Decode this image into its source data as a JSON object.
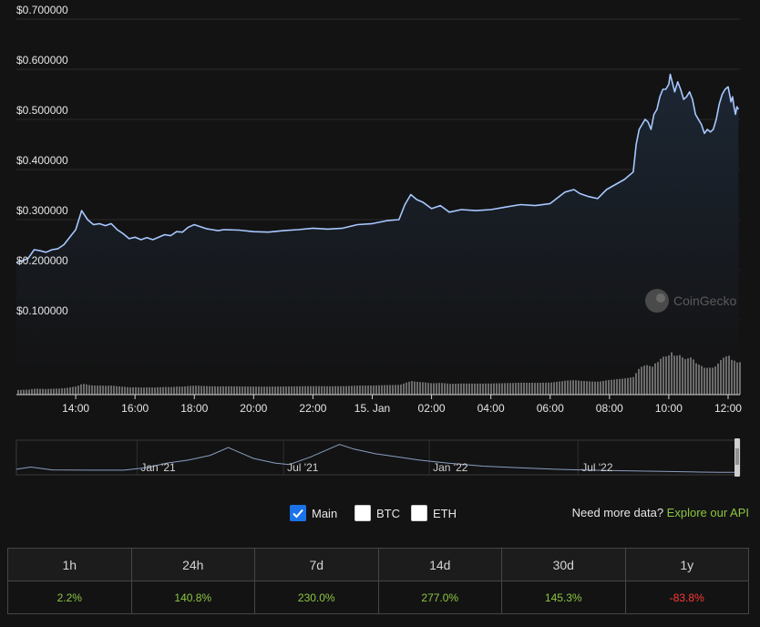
{
  "chart_data": {
    "type": "area",
    "ylim": [
      0,
      0.7
    ],
    "y_tick_labels": [
      "$0.100000",
      "$0.200000",
      "$0.300000",
      "$0.400000",
      "$0.500000",
      "$0.600000",
      "$0.700000"
    ],
    "y_tick_values": [
      0.1,
      0.2,
      0.3,
      0.4,
      0.5,
      0.6,
      0.7
    ],
    "x_tick_labels": [
      "14:00",
      "16:00",
      "18:00",
      "20:00",
      "22:00",
      "15. Jan",
      "02:00",
      "04:00",
      "06:00",
      "08:00",
      "10:00",
      "12:00"
    ],
    "x_tick_hours": [
      2,
      4,
      6,
      8,
      10,
      12,
      14,
      16,
      18,
      20,
      22,
      24
    ],
    "x_hour_range": [
      0.0,
      24.4
    ],
    "price": [
      [
        0.0,
        0.215
      ],
      [
        0.2,
        0.218
      ],
      [
        0.4,
        0.223
      ],
      [
        0.6,
        0.24
      ],
      [
        0.8,
        0.238
      ],
      [
        1.0,
        0.235
      ],
      [
        1.2,
        0.24
      ],
      [
        1.4,
        0.242
      ],
      [
        1.6,
        0.25
      ],
      [
        1.8,
        0.265
      ],
      [
        2.0,
        0.28
      ],
      [
        2.2,
        0.318
      ],
      [
        2.4,
        0.3
      ],
      [
        2.6,
        0.29
      ],
      [
        2.8,
        0.292
      ],
      [
        3.0,
        0.288
      ],
      [
        3.2,
        0.292
      ],
      [
        3.4,
        0.28
      ],
      [
        3.6,
        0.272
      ],
      [
        3.8,
        0.262
      ],
      [
        4.0,
        0.265
      ],
      [
        4.2,
        0.26
      ],
      [
        4.4,
        0.264
      ],
      [
        4.6,
        0.26
      ],
      [
        4.8,
        0.265
      ],
      [
        5.0,
        0.27
      ],
      [
        5.2,
        0.268
      ],
      [
        5.4,
        0.276
      ],
      [
        5.6,
        0.275
      ],
      [
        5.8,
        0.285
      ],
      [
        6.0,
        0.29
      ],
      [
        6.2,
        0.286
      ],
      [
        6.4,
        0.282
      ],
      [
        6.6,
        0.28
      ],
      [
        6.8,
        0.278
      ],
      [
        7.0,
        0.28
      ],
      [
        7.5,
        0.279
      ],
      [
        8.0,
        0.276
      ],
      [
        8.5,
        0.275
      ],
      [
        9.0,
        0.278
      ],
      [
        9.5,
        0.28
      ],
      [
        10.0,
        0.283
      ],
      [
        10.5,
        0.281
      ],
      [
        11.0,
        0.283
      ],
      [
        11.5,
        0.29
      ],
      [
        12.0,
        0.292
      ],
      [
        12.5,
        0.298
      ],
      [
        12.9,
        0.3
      ],
      [
        13.1,
        0.33
      ],
      [
        13.3,
        0.35
      ],
      [
        13.5,
        0.34
      ],
      [
        13.7,
        0.335
      ],
      [
        14.0,
        0.322
      ],
      [
        14.3,
        0.328
      ],
      [
        14.6,
        0.315
      ],
      [
        15.0,
        0.32
      ],
      [
        15.5,
        0.318
      ],
      [
        16.0,
        0.32
      ],
      [
        16.5,
        0.325
      ],
      [
        17.0,
        0.33
      ],
      [
        17.5,
        0.328
      ],
      [
        18.0,
        0.332
      ],
      [
        18.5,
        0.355
      ],
      [
        18.8,
        0.36
      ],
      [
        19.0,
        0.352
      ],
      [
        19.3,
        0.346
      ],
      [
        19.6,
        0.342
      ],
      [
        19.9,
        0.36
      ],
      [
        20.2,
        0.37
      ],
      [
        20.5,
        0.38
      ],
      [
        20.8,
        0.395
      ],
      [
        20.9,
        0.45
      ],
      [
        21.0,
        0.48
      ],
      [
        21.2,
        0.5
      ],
      [
        21.3,
        0.495
      ],
      [
        21.4,
        0.48
      ],
      [
        21.5,
        0.51
      ],
      [
        21.6,
        0.52
      ],
      [
        21.7,
        0.545
      ],
      [
        21.8,
        0.56
      ],
      [
        21.9,
        0.56
      ],
      [
        22.0,
        0.57
      ],
      [
        22.05,
        0.59
      ],
      [
        22.2,
        0.555
      ],
      [
        22.3,
        0.575
      ],
      [
        22.4,
        0.56
      ],
      [
        22.5,
        0.54
      ],
      [
        22.6,
        0.545
      ],
      [
        22.7,
        0.555
      ],
      [
        22.8,
        0.54
      ],
      [
        22.9,
        0.51
      ],
      [
        23.0,
        0.5
      ],
      [
        23.1,
        0.49
      ],
      [
        23.2,
        0.472
      ],
      [
        23.3,
        0.48
      ],
      [
        23.4,
        0.475
      ],
      [
        23.5,
        0.48
      ],
      [
        23.6,
        0.5
      ],
      [
        23.7,
        0.53
      ],
      [
        23.8,
        0.55
      ],
      [
        23.9,
        0.56
      ],
      [
        24.0,
        0.565
      ],
      [
        24.05,
        0.55
      ],
      [
        24.1,
        0.535
      ],
      [
        24.15,
        0.545
      ],
      [
        24.2,
        0.525
      ],
      [
        24.25,
        0.51
      ],
      [
        24.3,
        0.525
      ],
      [
        24.35,
        0.52
      ]
    ]
  },
  "overview": {
    "x_tick_labels": [
      "Jan '21",
      "Jul '21",
      "Jan '22",
      "Jul '22"
    ],
    "x_tick_positions": [
      0.168,
      0.372,
      0.575,
      0.782
    ],
    "price": [
      [
        0.0,
        0.15
      ],
      [
        0.02,
        0.22
      ],
      [
        0.05,
        0.13
      ],
      [
        0.1,
        0.12
      ],
      [
        0.15,
        0.12
      ],
      [
        0.18,
        0.2
      ],
      [
        0.21,
        0.35
      ],
      [
        0.24,
        0.45
      ],
      [
        0.27,
        0.6
      ],
      [
        0.295,
        0.85
      ],
      [
        0.31,
        0.7
      ],
      [
        0.33,
        0.5
      ],
      [
        0.36,
        0.35
      ],
      [
        0.38,
        0.3
      ],
      [
        0.41,
        0.55
      ],
      [
        0.44,
        0.85
      ],
      [
        0.45,
        0.95
      ],
      [
        0.47,
        0.8
      ],
      [
        0.5,
        0.65
      ],
      [
        0.53,
        0.55
      ],
      [
        0.56,
        0.45
      ],
      [
        0.6,
        0.35
      ],
      [
        0.65,
        0.25
      ],
      [
        0.7,
        0.2
      ],
      [
        0.75,
        0.15
      ],
      [
        0.8,
        0.12
      ],
      [
        0.85,
        0.1
      ],
      [
        0.9,
        0.08
      ],
      [
        0.95,
        0.06
      ],
      [
        0.98,
        0.05
      ],
      [
        1.0,
        0.05
      ]
    ]
  },
  "series_toggles": {
    "main": {
      "label": "Main",
      "checked": true
    },
    "btc": {
      "label": "BTC",
      "checked": false
    },
    "eth": {
      "label": "ETH",
      "checked": false
    }
  },
  "api_note": {
    "text": "Need more data?",
    "link": "Explore our API"
  },
  "watermark": "CoinGecko",
  "performance": {
    "headers": [
      "1h",
      "24h",
      "7d",
      "14d",
      "30d",
      "1y"
    ],
    "values": [
      "2.2%",
      "140.8%",
      "230.0%",
      "277.0%",
      "145.3%",
      "-83.8%"
    ]
  },
  "colors": {
    "line": "#a7c8ff",
    "positive": "#8dc63f",
    "negative": "#ff3a33",
    "grid": "#2b2b2d",
    "volume": "#6b6b6b"
  }
}
